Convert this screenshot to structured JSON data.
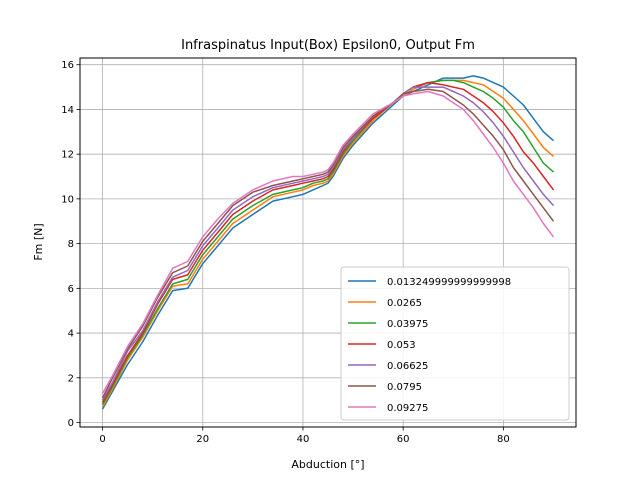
{
  "chart_data": {
    "type": "line",
    "title": "Infraspinatus Input(Box) Epsilon0, Output Fm",
    "xlabel": "Abduction [°]",
    "ylabel": "Fm [N]",
    "xlim": [
      -4.5,
      94.5
    ],
    "ylim": [
      -0.2,
      16.3
    ],
    "xticks": [
      0,
      20,
      40,
      60,
      80
    ],
    "yticks": [
      0,
      2,
      4,
      6,
      8,
      10,
      12,
      14,
      16
    ],
    "grid": true,
    "legend_position": "lower-right",
    "series": [
      {
        "name": "0.013249999999999998",
        "color": "#1f77b4",
        "x": [
          0,
          2,
          5,
          8,
          11,
          14,
          17,
          20,
          23,
          26,
          30,
          34,
          38,
          40,
          42,
          44,
          45,
          46,
          48,
          50,
          54,
          58,
          60,
          62,
          65,
          68,
          70,
          72,
          74,
          76,
          78,
          80,
          82,
          84,
          86,
          88,
          90
        ],
        "y": [
          0.6,
          1.4,
          2.6,
          3.6,
          4.8,
          5.9,
          6.0,
          7.1,
          7.9,
          8.7,
          9.3,
          9.9,
          10.1,
          10.2,
          10.4,
          10.6,
          10.7,
          11.0,
          11.8,
          12.4,
          13.4,
          14.2,
          14.6,
          14.8,
          15.1,
          15.4,
          15.4,
          15.4,
          15.5,
          15.4,
          15.2,
          15.0,
          14.6,
          14.2,
          13.6,
          13.0,
          12.6
        ]
      },
      {
        "name": "0.0265",
        "color": "#ff7f0e",
        "x": [
          0,
          2,
          5,
          8,
          11,
          14,
          17,
          20,
          23,
          26,
          30,
          34,
          38,
          40,
          42,
          44,
          45,
          46,
          48,
          50,
          54,
          58,
          60,
          62,
          65,
          68,
          70,
          72,
          74,
          76,
          78,
          80,
          82,
          84,
          86,
          88,
          90
        ],
        "y": [
          0.7,
          1.5,
          2.8,
          3.8,
          5.0,
          6.1,
          6.2,
          7.3,
          8.1,
          8.9,
          9.5,
          10.1,
          10.3,
          10.4,
          10.6,
          10.7,
          10.8,
          11.1,
          11.9,
          12.5,
          13.5,
          14.3,
          14.6,
          14.9,
          15.2,
          15.3,
          15.3,
          15.3,
          15.2,
          15.1,
          14.8,
          14.5,
          14.0,
          13.5,
          12.9,
          12.3,
          11.9
        ]
      },
      {
        "name": "0.03975",
        "color": "#2ca02c",
        "x": [
          0,
          2,
          5,
          8,
          11,
          14,
          17,
          20,
          23,
          26,
          30,
          34,
          38,
          40,
          42,
          44,
          45,
          46,
          48,
          50,
          54,
          58,
          60,
          62,
          65,
          68,
          70,
          72,
          74,
          76,
          78,
          80,
          82,
          84,
          86,
          88,
          90
        ],
        "y": [
          0.8,
          1.6,
          2.9,
          3.9,
          5.1,
          6.2,
          6.4,
          7.5,
          8.3,
          9.1,
          9.7,
          10.2,
          10.4,
          10.5,
          10.7,
          10.8,
          10.9,
          11.2,
          12.0,
          12.6,
          13.6,
          14.3,
          14.7,
          15.0,
          15.2,
          15.3,
          15.3,
          15.2,
          15.0,
          14.8,
          14.5,
          14.1,
          13.5,
          13.0,
          12.3,
          11.6,
          11.2
        ]
      },
      {
        "name": "0.053",
        "color": "#d62728",
        "x": [
          0,
          2,
          5,
          8,
          11,
          14,
          17,
          20,
          23,
          26,
          30,
          34,
          38,
          40,
          42,
          44,
          45,
          46,
          48,
          50,
          54,
          58,
          60,
          62,
          65,
          68,
          70,
          72,
          74,
          76,
          78,
          80,
          82,
          84,
          86,
          88,
          90
        ],
        "y": [
          0.9,
          1.7,
          3.0,
          4.0,
          5.3,
          6.4,
          6.6,
          7.7,
          8.5,
          9.3,
          9.9,
          10.4,
          10.6,
          10.7,
          10.8,
          10.9,
          11.0,
          11.3,
          12.1,
          12.7,
          13.6,
          14.3,
          14.7,
          15.0,
          15.2,
          15.1,
          15.0,
          14.9,
          14.6,
          14.3,
          13.9,
          13.4,
          12.8,
          12.1,
          11.6,
          11.0,
          10.4
        ]
      },
      {
        "name": "0.06625",
        "color": "#9467bd",
        "x": [
          0,
          2,
          5,
          8,
          11,
          14,
          17,
          20,
          23,
          26,
          30,
          34,
          38,
          40,
          42,
          44,
          45,
          46,
          48,
          50,
          54,
          58,
          60,
          62,
          65,
          68,
          70,
          72,
          74,
          76,
          78,
          80,
          82,
          84,
          86,
          88,
          90
        ],
        "y": [
          1.0,
          1.8,
          3.2,
          4.1,
          5.4,
          6.5,
          6.8,
          7.9,
          8.7,
          9.5,
          10.1,
          10.5,
          10.7,
          10.8,
          10.9,
          11.0,
          11.1,
          11.4,
          12.2,
          12.7,
          13.7,
          14.3,
          14.7,
          15.0,
          15.0,
          15.0,
          14.8,
          14.6,
          14.3,
          13.9,
          13.4,
          12.8,
          12.1,
          11.4,
          10.8,
          10.2,
          9.7
        ]
      },
      {
        "name": "0.0795",
        "color": "#8c564b",
        "x": [
          0,
          2,
          5,
          8,
          11,
          14,
          17,
          20,
          23,
          26,
          30,
          34,
          38,
          40,
          42,
          44,
          45,
          46,
          48,
          50,
          54,
          58,
          60,
          62,
          65,
          68,
          70,
          72,
          74,
          76,
          78,
          80,
          82,
          84,
          86,
          88,
          90
        ],
        "y": [
          1.1,
          2.0,
          3.3,
          4.3,
          5.6,
          6.7,
          7.0,
          8.1,
          8.9,
          9.7,
          10.3,
          10.6,
          10.8,
          10.9,
          11.0,
          11.1,
          11.2,
          11.5,
          12.3,
          12.8,
          13.7,
          14.3,
          14.7,
          14.8,
          14.9,
          14.8,
          14.5,
          14.2,
          13.8,
          13.3,
          12.8,
          12.2,
          11.4,
          10.8,
          10.2,
          9.6,
          9.0
        ]
      },
      {
        "name": "0.09275",
        "color": "#e377c2",
        "x": [
          0,
          2,
          5,
          8,
          11,
          14,
          17,
          20,
          23,
          26,
          30,
          34,
          38,
          40,
          42,
          44,
          45,
          46,
          48,
          50,
          54,
          58,
          60,
          62,
          65,
          68,
          70,
          72,
          74,
          76,
          78,
          80,
          82,
          84,
          86,
          88,
          90
        ],
        "y": [
          1.3,
          2.1,
          3.4,
          4.4,
          5.7,
          6.9,
          7.2,
          8.3,
          9.1,
          9.8,
          10.4,
          10.8,
          11.0,
          11.0,
          11.1,
          11.2,
          11.3,
          11.6,
          12.4,
          12.9,
          13.8,
          14.3,
          14.6,
          14.7,
          14.8,
          14.6,
          14.3,
          14.0,
          13.5,
          12.9,
          12.3,
          11.6,
          10.8,
          10.2,
          9.6,
          8.9,
          8.3
        ]
      }
    ]
  }
}
